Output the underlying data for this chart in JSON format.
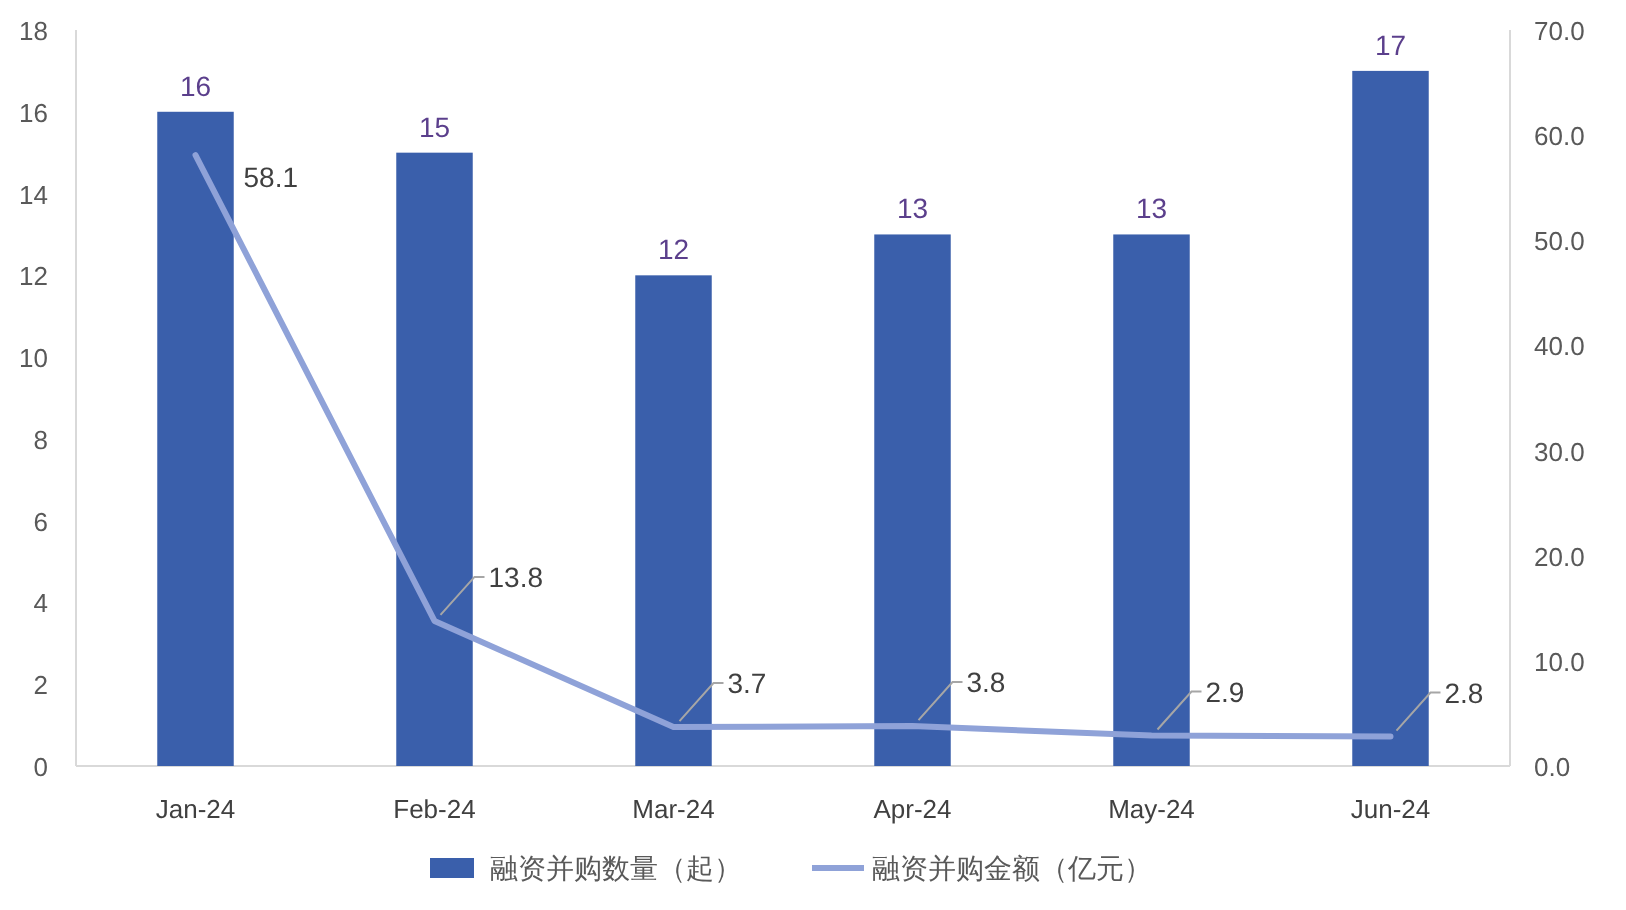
{
  "chart_data": {
    "type": "bar",
    "categories": [
      "Jan-24",
      "Feb-24",
      "Mar-24",
      "Apr-24",
      "May-24",
      "Jun-24"
    ],
    "series": [
      {
        "name": "融资并购数量（起）",
        "color": "#3a5fab",
        "values": [
          16,
          15,
          12,
          13,
          13,
          17
        ]
      },
      {
        "name": "融资并购金额（亿元）",
        "type": "line",
        "axis": "y2",
        "color": "#8fa2d8",
        "values": [
          58.1,
          13.8,
          3.7,
          3.8,
          2.9,
          2.8
        ]
      }
    ],
    "ylim": [
      0,
      18
    ],
    "yticks": [
      0,
      2,
      4,
      6,
      8,
      10,
      12,
      14,
      16,
      18
    ],
    "y2lim": [
      0,
      70
    ],
    "y2ticks": [
      {
        "value": 0,
        "label": "0.0"
      },
      {
        "value": 10,
        "label": "10.0"
      },
      {
        "value": 20,
        "label": "20.0"
      },
      {
        "value": 30,
        "label": "30.0"
      },
      {
        "value": 40,
        "label": "40.0"
      },
      {
        "value": 50,
        "label": "50.0"
      },
      {
        "value": 60,
        "label": "60.0"
      },
      {
        "value": 70,
        "label": "70.0"
      }
    ],
    "data_labels": true,
    "grid": false,
    "legend": "bottom",
    "marker": "none",
    "line_style": "solid"
  }
}
